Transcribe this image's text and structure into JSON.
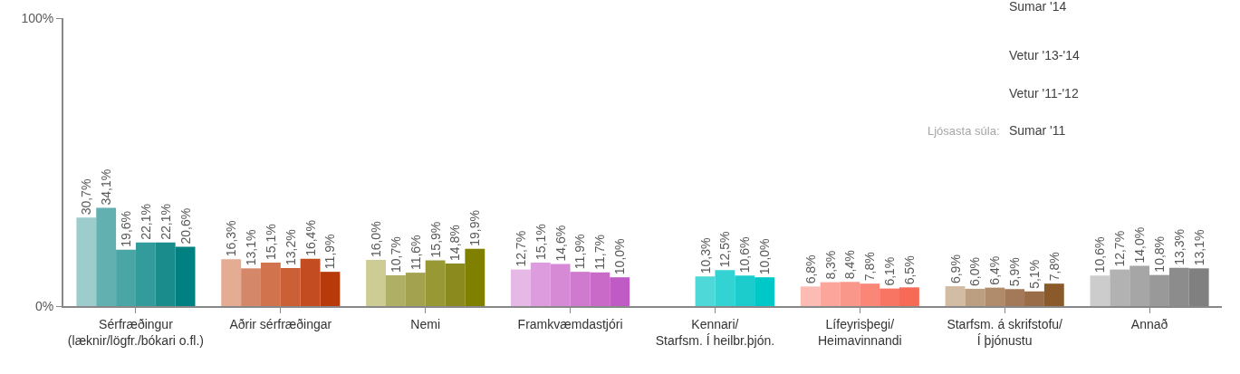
{
  "chart_data": {
    "type": "bar",
    "categories": [
      "Sérfræðingur\n(læknir/lögfr./bókari o.fl.)",
      "Aðrir sérfræðingar",
      "Nemi",
      "Framkvæmdastjóri",
      "Kennari/\nStarfsm. Í heilbr.þjón.",
      "Lífeyrisþegi/\nHeimavinnandi",
      "Starfsm. á skrifstofu/\nÍ þjónustu",
      "Annað"
    ],
    "series": [
      {
        "colors": [
          "#9ccccc",
          "#e3ac93",
          "#cccc94",
          "#e6b8e6",
          "#4ed8d8",
          "#fcbcb4",
          "#d2bca4",
          "#cccccc"
        ],
        "values": [
          30.7,
          16.3,
          16.0,
          12.7,
          null,
          6.8,
          6.9,
          10.6
        ],
        "value_labels": [
          "30,7%",
          "16,3%",
          "16,0%",
          "12,7%",
          null,
          "6,8%",
          "6,9%",
          "10,6%"
        ]
      },
      {
        "colors": [
          "#63b0b1",
          "#d58869",
          "#afaf66",
          "#dd9cdd",
          "#4ed8d8",
          "#fba59b",
          "#bc9e80",
          "#b2b2b2"
        ],
        "values": [
          34.1,
          13.1,
          10.7,
          15.1,
          null,
          8.3,
          6.0,
          12.7
        ],
        "value_labels": [
          "34,1%",
          "13,1%",
          "10,7%",
          "15,1%",
          null,
          "8,3%",
          "6,0%",
          "12,7%"
        ]
      },
      {
        "colors": [
          "#4aa5a5",
          "#d1734c",
          "#a3a34f",
          "#d68ad6",
          "#4ed8d8",
          "#fa978b",
          "#b08c6c",
          "#a6a6a6"
        ],
        "values": [
          19.6,
          15.1,
          11.6,
          14.6,
          10.3,
          8.4,
          6.4,
          14.0
        ],
        "value_labels": [
          "19,6%",
          "15,1%",
          "11,6%",
          "14,6%",
          "10,3%",
          "8,4%",
          "6,4%",
          "14,0%"
        ]
      },
      {
        "colors": [
          "#339b9b",
          "#cb5f36",
          "#989835",
          "#cf7acf",
          "#33d3d3",
          "#f98677",
          "#a4795a",
          "#999999"
        ],
        "values": [
          22.1,
          13.2,
          15.9,
          11.9,
          12.5,
          7.8,
          5.9,
          10.8
        ],
        "value_labels": [
          "22,1%",
          "13,2%",
          "15,9%",
          "11,9%",
          "12,5%",
          "7,8%",
          "5,9%",
          "10,8%"
        ]
      },
      {
        "colors": [
          "#1a8c8c",
          "#c34c20",
          "#8a8a1f",
          "#c96ac9",
          "#1ccccc",
          "#f87564",
          "#9a6c48",
          "#8c8c8c"
        ],
        "values": [
          22.1,
          16.4,
          14.8,
          11.7,
          10.6,
          6.1,
          5.1,
          13.3
        ],
        "value_labels": [
          "22,1%",
          "16,4%",
          "14,8%",
          "11,7%",
          "10,6%",
          "6,1%",
          "5,1%",
          "13,3%"
        ]
      },
      {
        "colors": [
          "#008080",
          "#b83a0a",
          "#808000",
          "#c05ac5",
          "#00c8c8",
          "#f76a55",
          "#8a5a2a",
          "#808080"
        ],
        "values": [
          20.6,
          11.9,
          19.9,
          10.0,
          10.0,
          6.5,
          7.8,
          13.1
        ],
        "value_labels": [
          "20,6%",
          "11,9%",
          "19,9%",
          "10,0%",
          "10,0%",
          "6,5%",
          "7,8%",
          "13,1%"
        ]
      }
    ],
    "ylim": [
      0,
      100
    ],
    "yticks": [
      {
        "value": 0,
        "label": "0%"
      },
      {
        "value": 100,
        "label": "100%"
      }
    ],
    "annotations": [
      "Sumar '14",
      "Vetur '13-'14",
      "Vetur '11-'12",
      "Ljósasta súla:",
      "Sumar '11"
    ]
  }
}
